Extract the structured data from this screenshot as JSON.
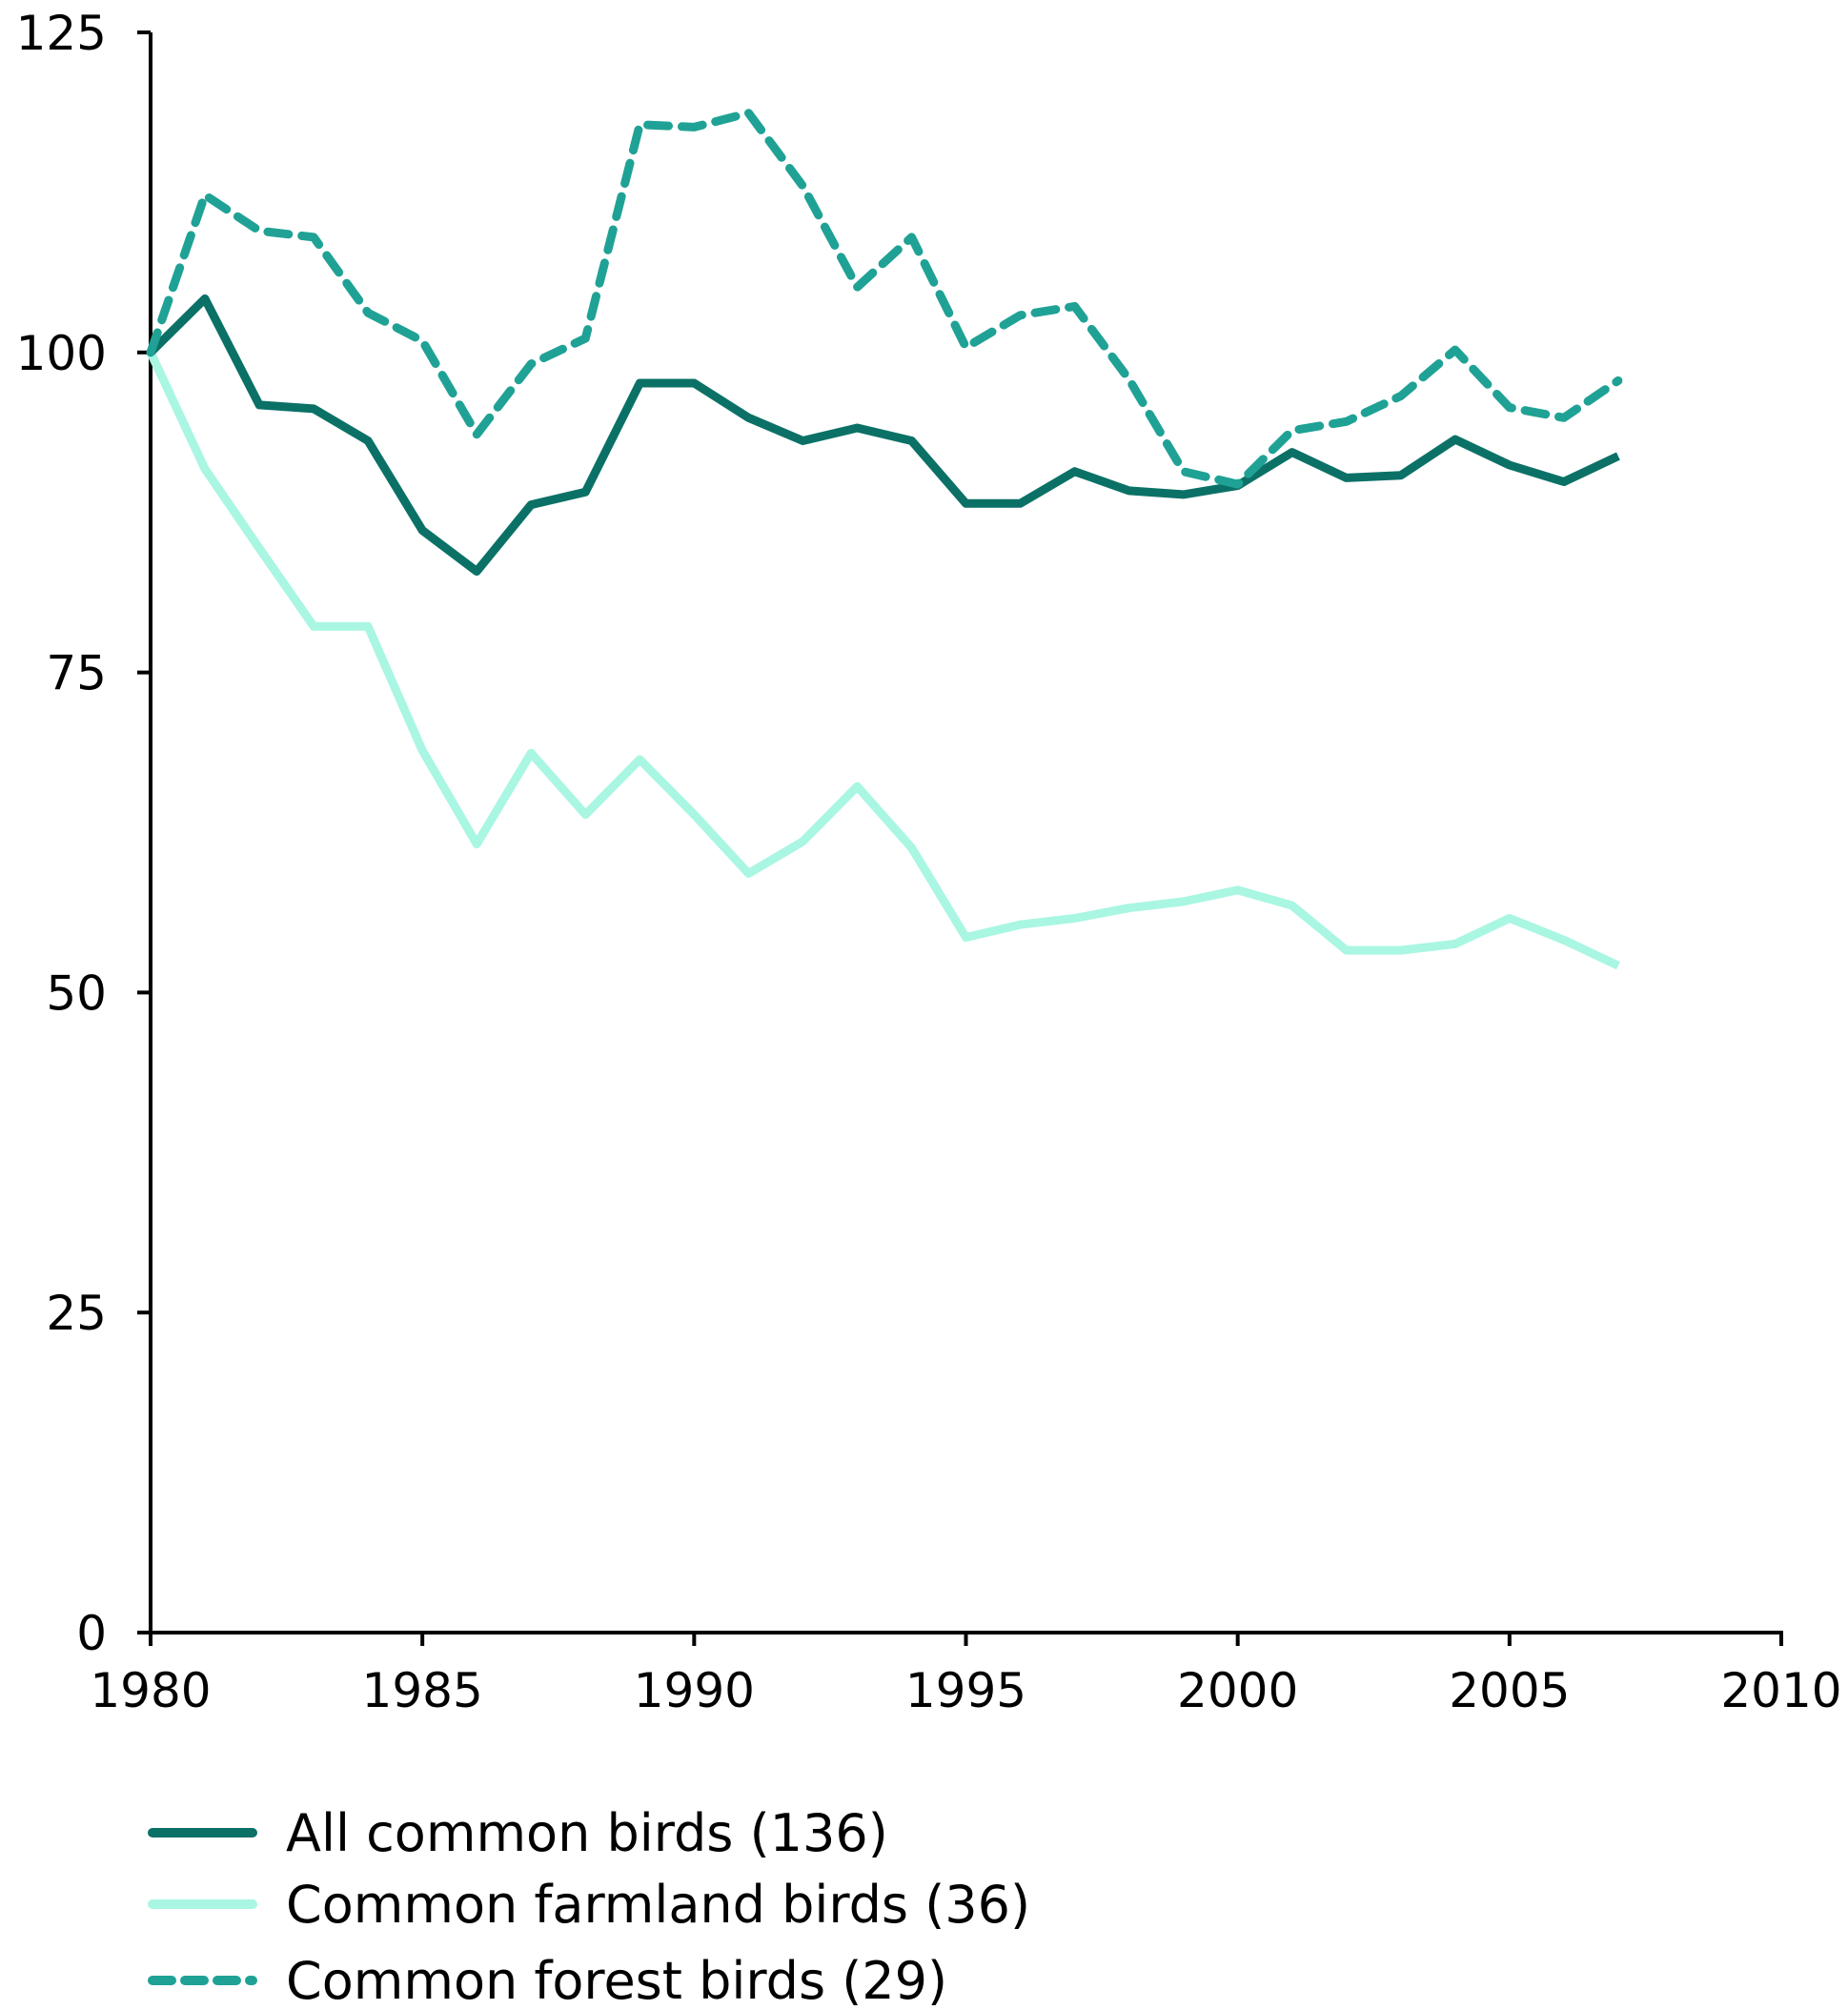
{
  "chart_data": {
    "type": "line",
    "title": "",
    "xlabel": "",
    "ylabel": "",
    "xlim": [
      1980,
      2010
    ],
    "ylim": [
      0,
      125
    ],
    "x_ticks": [
      "1980",
      "1985",
      "1990",
      "1995",
      "2000",
      "2005",
      "2010"
    ],
    "y_ticks": [
      "0",
      "25",
      "50",
      "75",
      "100",
      "125"
    ],
    "grid": false,
    "legend_position": "bottom-left",
    "x": [
      1980,
      1981,
      1982,
      1983,
      1984,
      1985,
      1986,
      1987,
      1988,
      1989,
      1990,
      1991,
      1992,
      1993,
      1994,
      1995,
      1996,
      1997,
      1998,
      1999,
      2000,
      2001,
      2002,
      2003,
      2004,
      2005,
      2006,
      2007
    ],
    "series": [
      {
        "name": "All common birds (136)",
        "color": "#0b7167",
        "dash": false,
        "values": [
          100,
          104.2,
          95.9,
          95.6,
          93.1,
          86.1,
          82.9,
          88.1,
          89.1,
          97.6,
          97.6,
          94.9,
          93.1,
          94.1,
          93.1,
          88.2,
          88.2,
          90.7,
          89.2,
          88.9,
          89.6,
          92.2,
          90.2,
          90.4,
          93.2,
          91.2,
          89.9,
          91.9
        ]
      },
      {
        "name": "Common farmland birds (36)",
        "color": "#a9f6e2",
        "dash": false,
        "values": [
          100,
          90.9,
          84.7,
          78.6,
          78.6,
          68.9,
          61.6,
          68.7,
          63.9,
          68.2,
          63.9,
          59.3,
          61.8,
          66.1,
          61.3,
          54.3,
          55.3,
          55.8,
          56.6,
          57.1,
          58.0,
          56.8,
          53.3,
          53.3,
          53.8,
          55.8,
          54.1,
          52.1
        ]
      },
      {
        "name": "Common forest birds (29)",
        "color": "#1fa295",
        "dash": true,
        "values": [
          100,
          112.3,
          109.5,
          109.0,
          103.1,
          100.9,
          93.6,
          99.1,
          101.1,
          117.8,
          117.6,
          118.7,
          113.0,
          105.1,
          109.0,
          100.4,
          102.9,
          103.6,
          97.9,
          90.7,
          89.7,
          93.9,
          94.6,
          96.6,
          100.2,
          95.7,
          94.9,
          97.8
        ]
      }
    ]
  }
}
